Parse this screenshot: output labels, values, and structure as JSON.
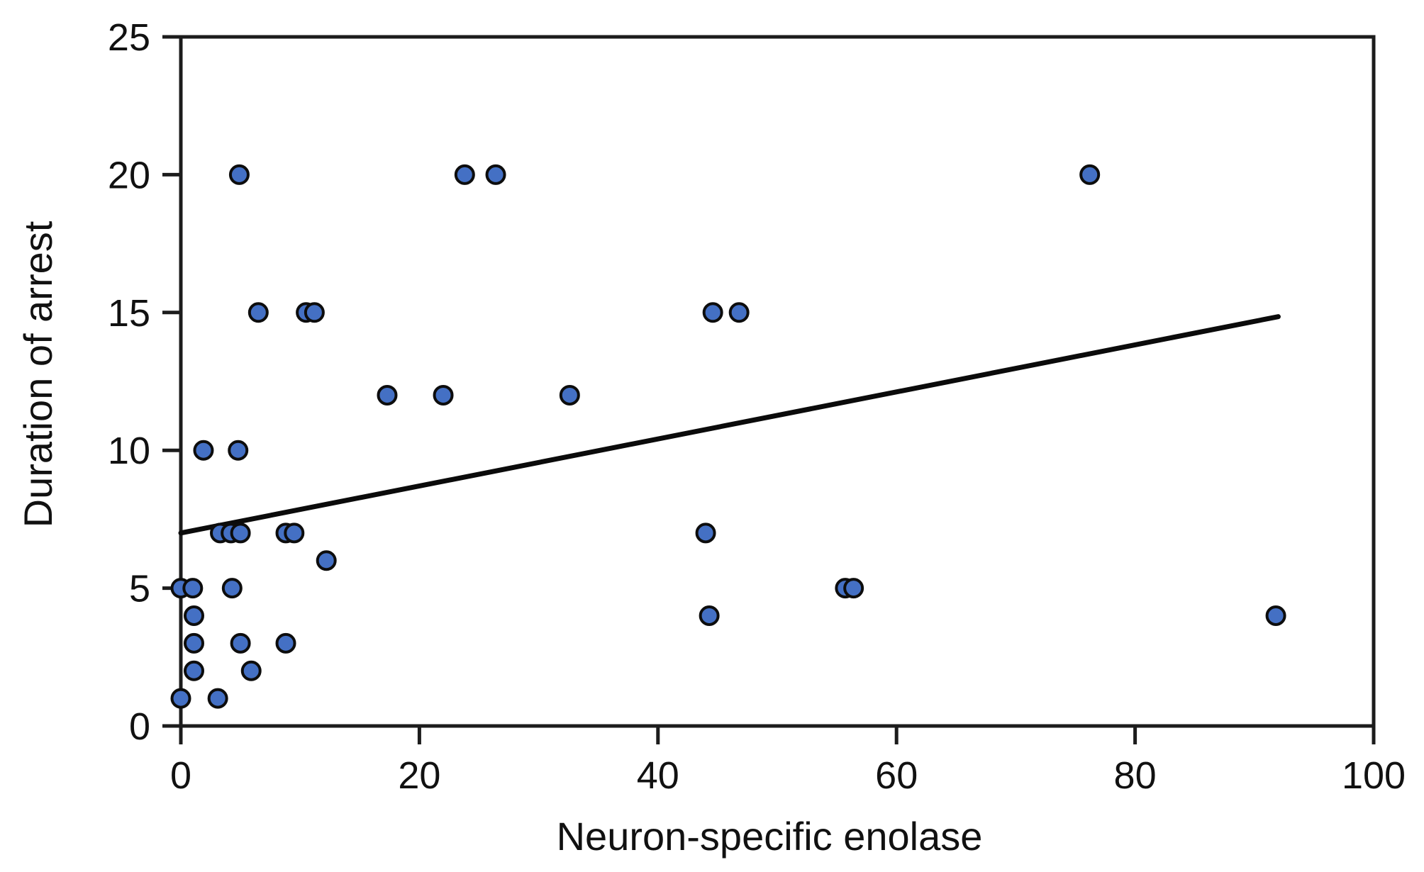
{
  "chart_data": {
    "type": "scatter",
    "title": "",
    "xlabel": "Neuron-specific enolase",
    "ylabel": "Duration of arrest",
    "xlim": [
      0,
      100
    ],
    "ylim": [
      0,
      25
    ],
    "x_ticks": [
      0,
      20,
      40,
      60,
      80,
      100
    ],
    "y_ticks": [
      0,
      5,
      10,
      15,
      20,
      25
    ],
    "grid": false,
    "legend": "none",
    "points": [
      [
        0,
        1
      ],
      [
        3.1,
        1
      ],
      [
        1.1,
        2
      ],
      [
        5.9,
        2
      ],
      [
        1.1,
        3
      ],
      [
        5,
        3
      ],
      [
        8.8,
        3
      ],
      [
        1.1,
        4
      ],
      [
        44.3,
        4
      ],
      [
        91.8,
        4
      ],
      [
        0,
        5
      ],
      [
        1,
        5
      ],
      [
        4.3,
        5
      ],
      [
        55.7,
        5
      ],
      [
        56.4,
        5
      ],
      [
        12.2,
        6
      ],
      [
        3.3,
        7
      ],
      [
        4.2,
        7
      ],
      [
        5,
        7
      ],
      [
        8.8,
        7
      ],
      [
        9.5,
        7
      ],
      [
        44,
        7
      ],
      [
        1.9,
        10
      ],
      [
        4.8,
        10
      ],
      [
        17.3,
        12
      ],
      [
        22,
        12
      ],
      [
        32.6,
        12
      ],
      [
        6.5,
        15
      ],
      [
        10.5,
        15
      ],
      [
        11.2,
        15
      ],
      [
        44.6,
        15
      ],
      [
        46.8,
        15
      ],
      [
        4.9,
        20
      ],
      [
        23.8,
        20
      ],
      [
        26.4,
        20
      ],
      [
        76.2,
        20
      ]
    ],
    "trend_line": {
      "x1": 0,
      "y1": 7.0,
      "x2": 92,
      "y2": 14.85
    },
    "colors": {
      "point_fill": "#4470C4",
      "point_stroke": "#0d0d0d",
      "trend_line": "#0b0b0b",
      "axis": "#1c1c1c",
      "tick_label": "#111111"
    }
  }
}
